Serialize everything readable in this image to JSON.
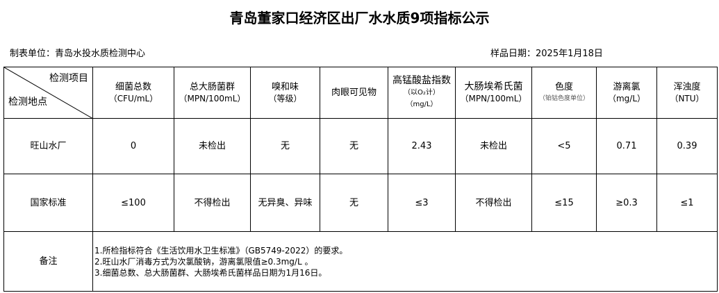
{
  "title": "青岛董家口经济区出厂水水质9项指标公示",
  "unit": "制表单位：青岛水投水质检测中心",
  "date": "样品日期：2025年1月18日",
  "corner": {
    "top": "检测项目",
    "bottom": "检测地点"
  },
  "headers": [
    {
      "name": "细菌总数",
      "unit": "（CFU/mL）"
    },
    {
      "name": "总大肠菌群",
      "unit": "（MPN/100mL）"
    },
    {
      "name": "嗅和味",
      "unit": "（等级）"
    },
    {
      "name": "肉眼可见物",
      "unit": ""
    },
    {
      "name": "高锰酸盐指数",
      "unit": "（以O₂计）",
      "unit2": "（mg/L）"
    },
    {
      "name": "大肠埃希氏菌",
      "unit": "（MPN/100mL）"
    },
    {
      "name": "色度",
      "unit": "（铂钴色度单位）"
    },
    {
      "name": "游离氯",
      "unit": "（mg/L）"
    },
    {
      "name": "浑浊度",
      "unit": "（NTU）"
    }
  ],
  "rows": [
    {
      "label": "旺山水厂",
      "values": [
        "0",
        "未检出",
        "无",
        "无",
        "2.43",
        "未检出",
        "<5",
        "0.71",
        "0.39"
      ]
    },
    {
      "label": "国家标准",
      "values": [
        "≤100",
        "不得检出",
        "无异臭、异味",
        "无",
        "≤3",
        "不得检出",
        "≤15",
        "≥0.3",
        "≤1"
      ]
    }
  ],
  "notes": {
    "label": "备注",
    "lines": [
      "1.所检指标符合《生活饮用水卫生标准》（GB5749-2022）的要求。",
      "2.旺山水厂消毒方式为次氯酸钠，游离氯限值≥0.3mg/L 。",
      "3.细菌总数、总大肠菌群、大肠埃希氏菌样品日期为1月16日。"
    ]
  }
}
